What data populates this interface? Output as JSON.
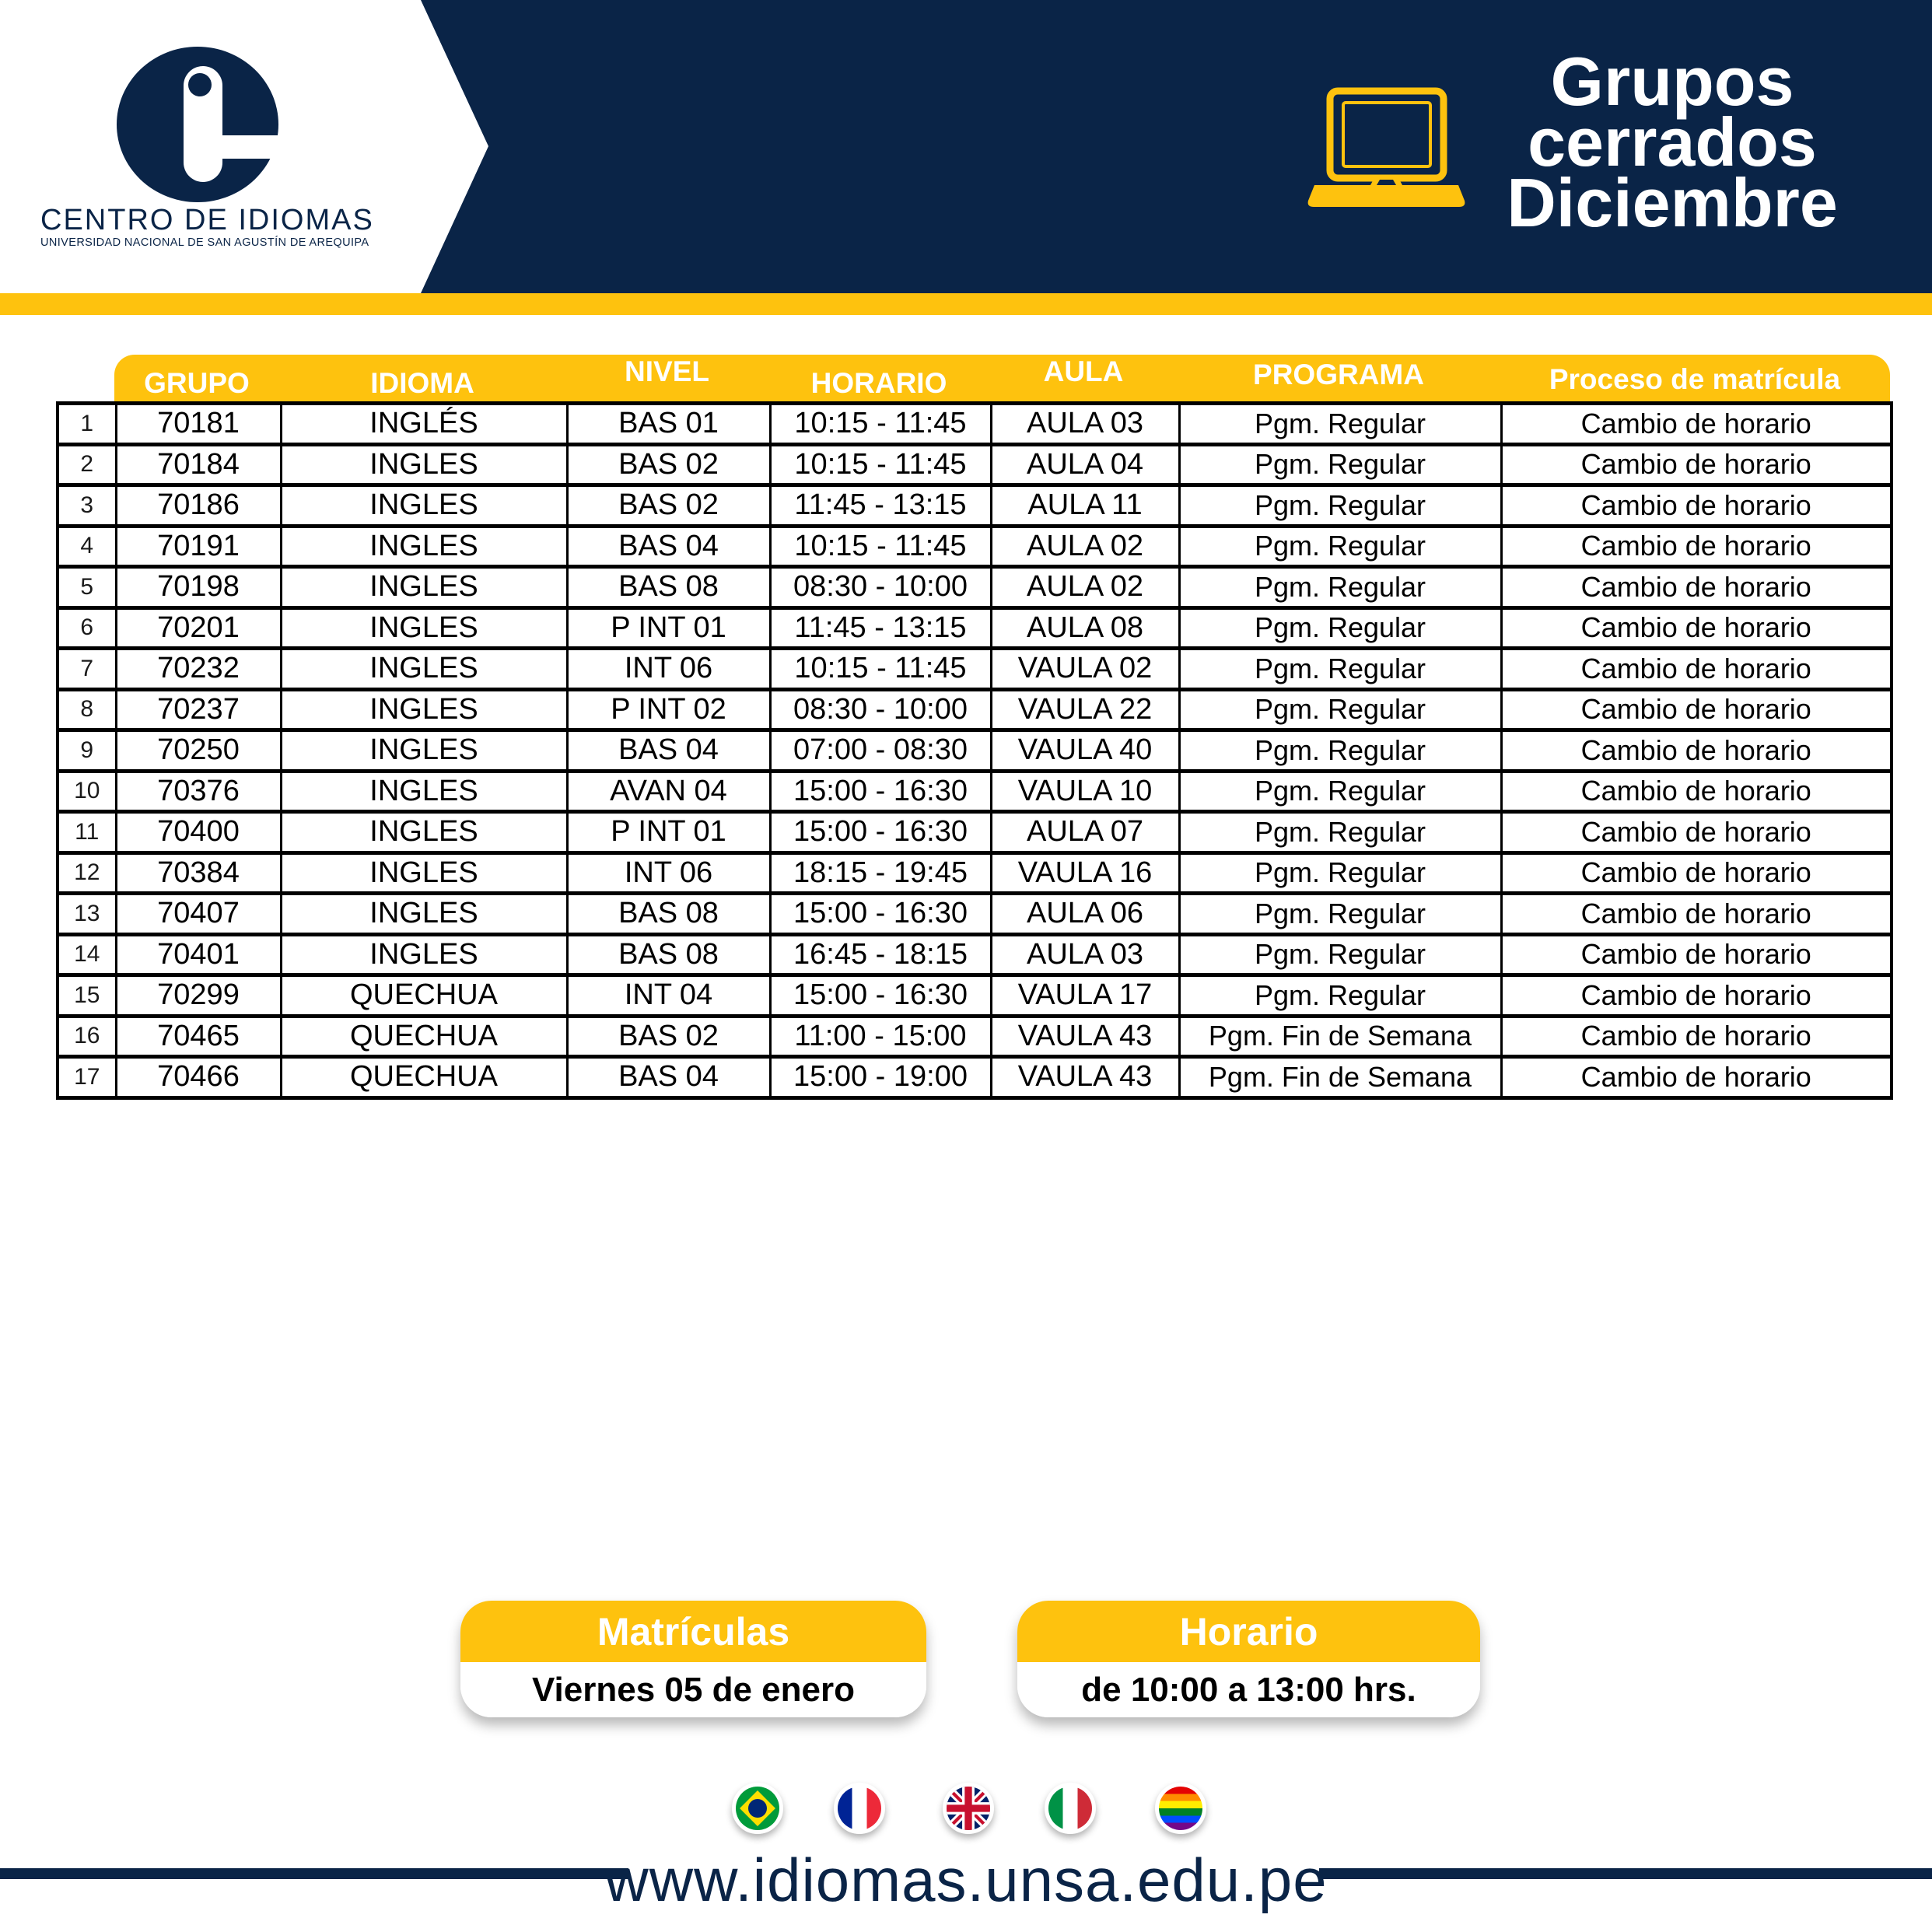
{
  "brand": {
    "name": "CENTRO DE IDIOMAS",
    "university": "UNIVERSIDAD NACIONAL DE SAN AGUSTÍN DE AREQUIPA"
  },
  "banner": {
    "title_lines": [
      "Grupos",
      "cerrados",
      "Diciembre"
    ]
  },
  "colors": {
    "navy": "#0a2447",
    "yellow": "#fec20e"
  },
  "table": {
    "columns": [
      "GRUPO",
      "IDIOMA",
      "NIVEL",
      "HORARIO",
      "AULA",
      "PROGRAMA",
      "Proceso de matrícula"
    ],
    "rows": [
      [
        "1",
        "70181",
        "INGLÉS",
        "BAS 01",
        "10:15 - 11:45",
        "AULA 03",
        "Pgm. Regular",
        "Cambio de horario"
      ],
      [
        "2",
        "70184",
        "INGLES",
        "BAS 02",
        "10:15 - 11:45",
        "AULA 04",
        "Pgm. Regular",
        "Cambio de horario"
      ],
      [
        "3",
        "70186",
        "INGLES",
        "BAS 02",
        "11:45 - 13:15",
        "AULA 11",
        "Pgm. Regular",
        "Cambio de horario"
      ],
      [
        "4",
        "70191",
        "INGLES",
        "BAS 04",
        "10:15 - 11:45",
        "AULA 02",
        "Pgm. Regular",
        "Cambio de horario"
      ],
      [
        "5",
        "70198",
        "INGLES",
        "BAS 08",
        "08:30 - 10:00",
        "AULA 02",
        "Pgm. Regular",
        "Cambio de horario"
      ],
      [
        "6",
        "70201",
        "INGLES",
        "P INT 01",
        "11:45 - 13:15",
        "AULA 08",
        "Pgm. Regular",
        "Cambio de horario"
      ],
      [
        "7",
        "70232",
        "INGLES",
        "INT 06",
        "10:15 - 11:45",
        "VAULA 02",
        "Pgm. Regular",
        "Cambio de horario"
      ],
      [
        "8",
        "70237",
        "INGLES",
        "P INT 02",
        "08:30 - 10:00",
        "VAULA 22",
        "Pgm. Regular",
        "Cambio de horario"
      ],
      [
        "9",
        "70250",
        "INGLES",
        "BAS 04",
        "07:00 - 08:30",
        "VAULA 40",
        "Pgm. Regular",
        "Cambio de horario"
      ],
      [
        "10",
        "70376",
        "INGLES",
        "AVAN 04",
        "15:00 - 16:30",
        "VAULA 10",
        "Pgm. Regular",
        "Cambio de horario"
      ],
      [
        "11",
        "70400",
        "INGLES",
        "P INT 01",
        "15:00 - 16:30",
        "AULA 07",
        "Pgm. Regular",
        "Cambio de horario"
      ],
      [
        "12",
        "70384",
        "INGLES",
        "INT 06",
        "18:15 - 19:45",
        "VAULA 16",
        "Pgm. Regular",
        "Cambio de horario"
      ],
      [
        "13",
        "70407",
        "INGLES",
        "BAS 08",
        "15:00 - 16:30",
        "AULA 06",
        "Pgm. Regular",
        "Cambio de horario"
      ],
      [
        "14",
        "70401",
        "INGLES",
        "BAS 08",
        "16:45 - 18:15",
        "AULA 03",
        "Pgm. Regular",
        "Cambio de horario"
      ],
      [
        "15",
        "70299",
        "QUECHUA",
        "INT 04",
        "15:00 - 16:30",
        "VAULA 17",
        "Pgm. Regular",
        "Cambio de horario"
      ],
      [
        "16",
        "70465",
        "QUECHUA",
        "BAS 02",
        "11:00 - 15:00",
        "VAULA 43",
        "Pgm. Fin de Semana",
        "Cambio de horario"
      ],
      [
        "17",
        "70466",
        "QUECHUA",
        "BAS 04",
        "15:00 - 19:00",
        "VAULA 43",
        "Pgm. Fin de Semana",
        "Cambio de horario"
      ]
    ]
  },
  "badges": [
    {
      "title": "Matrículas",
      "value": "Viernes 05 de enero"
    },
    {
      "title": "Horario",
      "value": "de 10:00 a 13:00 hrs."
    }
  ],
  "flags": [
    {
      "name": "brazil-flag-icon",
      "type": "brazil"
    },
    {
      "name": "france-flag-icon",
      "type": "france"
    },
    {
      "name": "uk-flag-icon",
      "type": "uk"
    },
    {
      "name": "italy-flag-icon",
      "type": "italy"
    },
    {
      "name": "rainbow-flag-icon",
      "type": "rainbow"
    }
  ],
  "footer": {
    "website": "www.idiomas.unsa.edu.pe"
  }
}
